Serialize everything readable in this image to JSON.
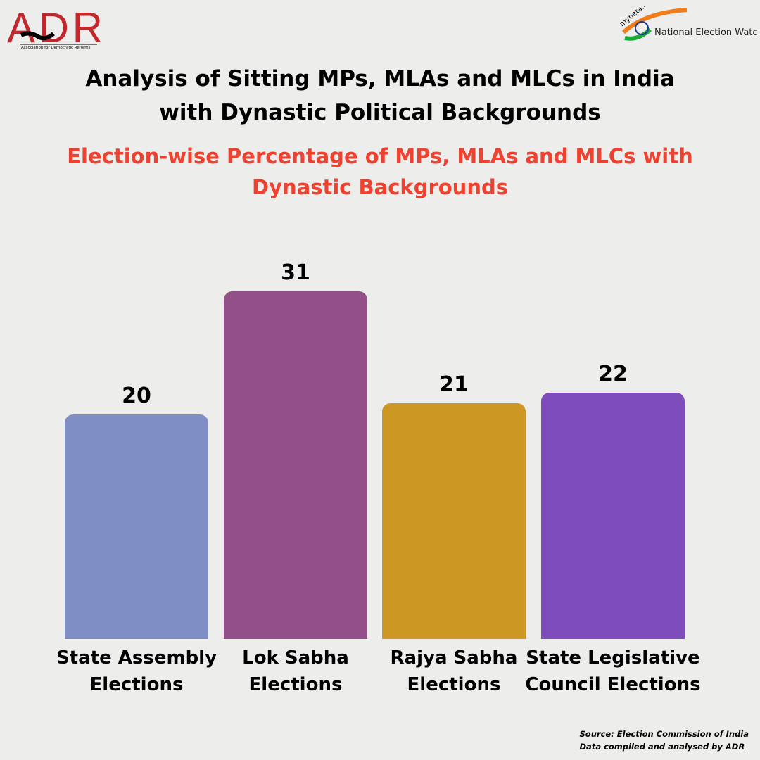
{
  "logos": {
    "left": "ADR Association for Democratic Reforms",
    "right": "myneta.info National Election Watch"
  },
  "header": {
    "title": "Analysis of Sitting MPs, MLAs and MLCs in India with Dynastic Political Backgrounds"
  },
  "chart_data": {
    "type": "bar",
    "title": "Election-wise Percentage of MPs, MLAs and MLCs with Dynastic Backgrounds",
    "categories": [
      "State Assembly Elections",
      "Lok Sabha Elections",
      "Rajya Sabha Elections",
      "State Legislative Council Elections"
    ],
    "values": [
      20,
      31,
      21,
      22
    ],
    "colors": [
      "#7f8ec4",
      "#934f88",
      "#cc9722",
      "#7f4dbb"
    ],
    "ylim": [
      0,
      57
    ],
    "grid": false
  },
  "footer": {
    "source": "Source: Election Commission of India",
    "credit": "Data compiled and analysed by ADR"
  }
}
